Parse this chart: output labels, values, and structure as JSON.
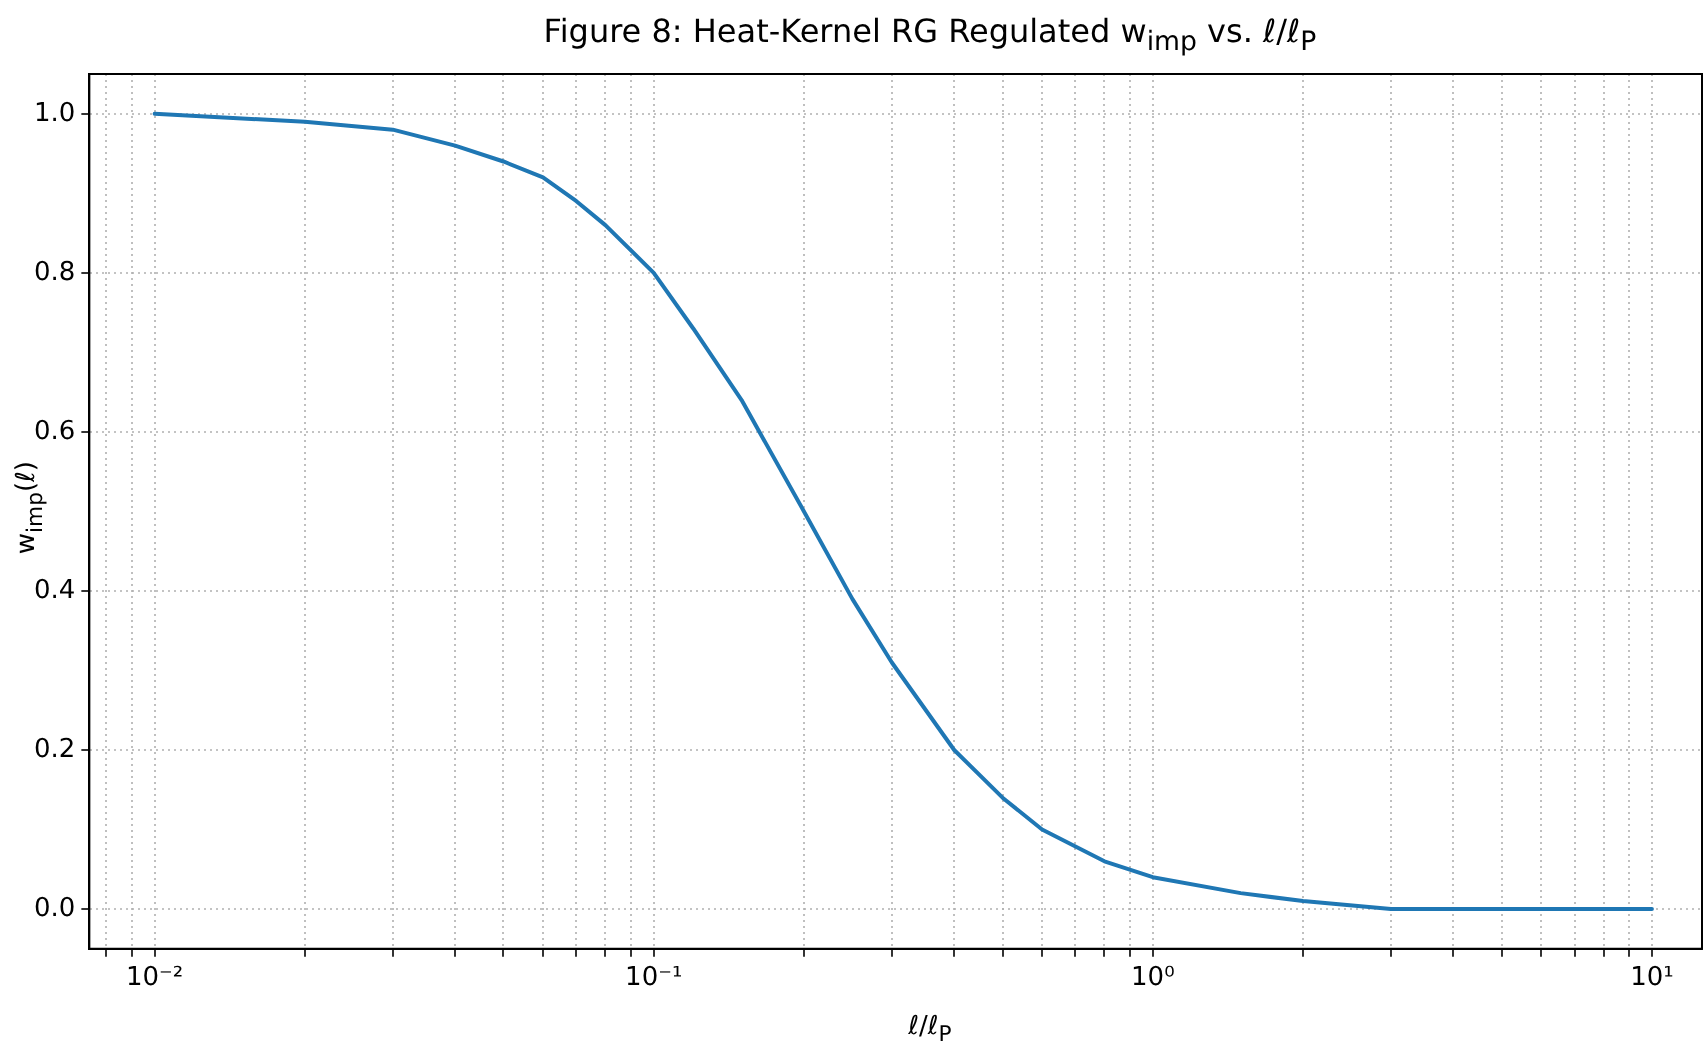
{
  "chart_data": {
    "type": "line",
    "title": "Figure 8: Heat-Kernel RG Regulated w$_{imp}$ vs. ℓ/ℓ$_{P}$",
    "xlabel": "ℓ/ℓ$_{P}$",
    "ylabel": "w$_{imp}$(ℓ)",
    "x": [
      0.01,
      0.02,
      0.03,
      0.04,
      0.05,
      0.06,
      0.07,
      0.08,
      0.1,
      0.12,
      0.15,
      0.2,
      0.25,
      0.3,
      0.4,
      0.5,
      0.6,
      0.8,
      1,
      1.5,
      2,
      3,
      5,
      10
    ],
    "series": [
      {
        "color": "#1f77b4",
        "values": [
          1.0,
          0.99,
          0.98,
          0.96,
          0.94,
          0.92,
          0.89,
          0.86,
          0.8,
          0.73,
          0.64,
          0.5,
          0.39,
          0.31,
          0.2,
          0.14,
          0.1,
          0.06,
          0.04,
          0.02,
          0.01,
          0.0,
          0.0,
          0.0
        ]
      }
    ],
    "xlim": [
      0.0074,
      12.6
    ],
    "ylim": [
      -0.05,
      1.05
    ],
    "xticks": [
      {
        "value": 0.008,
        "label": null
      },
      {
        "value": 0.009,
        "label": null
      },
      {
        "value": 0.01,
        "label": "10⁻²"
      },
      {
        "value": 0.02,
        "label": null
      },
      {
        "value": 0.03,
        "label": null
      },
      {
        "value": 0.04,
        "label": null
      },
      {
        "value": 0.05,
        "label": null
      },
      {
        "value": 0.06,
        "label": null
      },
      {
        "value": 0.07,
        "label": null
      },
      {
        "value": 0.08,
        "label": null
      },
      {
        "value": 0.09,
        "label": null
      },
      {
        "value": 0.1,
        "label": "10⁻¹"
      },
      {
        "value": 0.2,
        "label": null
      },
      {
        "value": 0.3,
        "label": null
      },
      {
        "value": 0.4,
        "label": null
      },
      {
        "value": 0.5,
        "label": null
      },
      {
        "value": 0.6,
        "label": null
      },
      {
        "value": 0.7,
        "label": null
      },
      {
        "value": 0.8,
        "label": null
      },
      {
        "value": 0.9,
        "label": null
      },
      {
        "value": 1,
        "label": "10⁰"
      },
      {
        "value": 2,
        "label": null
      },
      {
        "value": 3,
        "label": null
      },
      {
        "value": 4,
        "label": null
      },
      {
        "value": 5,
        "label": null
      },
      {
        "value": 6,
        "label": null
      },
      {
        "value": 7,
        "label": null
      },
      {
        "value": 8,
        "label": null
      },
      {
        "value": 9,
        "label": null
      },
      {
        "value": 10,
        "label": "10¹"
      }
    ],
    "yticks": [
      {
        "value": 0,
        "label": "0.0"
      },
      {
        "value": 0.2,
        "label": "0.2"
      },
      {
        "value": 0.4,
        "label": "0.4"
      },
      {
        "value": 0.6,
        "label": "0.6"
      },
      {
        "value": 0.8,
        "label": "0.8"
      },
      {
        "value": 1,
        "label": "1.0"
      }
    ],
    "log": "x",
    "grid": true,
    "legend": false,
    "marker": "none",
    "line_style": "solid"
  }
}
